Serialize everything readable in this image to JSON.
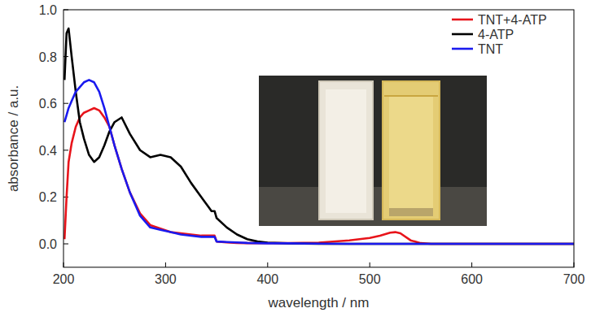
{
  "chart_data": {
    "type": "line",
    "x_label": "wavelength / nm",
    "y_label": "absorbance / a.u.",
    "x": [
      201,
      203,
      205,
      208,
      212,
      216,
      220,
      225,
      230,
      235,
      240,
      245,
      250,
      257,
      265,
      275,
      285,
      295,
      305,
      315,
      325,
      335,
      345,
      348,
      350,
      360,
      370,
      380,
      390,
      400,
      420,
      450,
      480,
      500,
      510,
      520,
      525,
      530,
      540,
      550,
      560,
      600,
      650,
      700
    ],
    "series": [
      {
        "name": "TNT+4-ATP",
        "color": "#e8141b",
        "values": [
          0.02,
          0.2,
          0.35,
          0.43,
          0.5,
          0.54,
          0.56,
          0.57,
          0.58,
          0.57,
          0.54,
          0.5,
          0.42,
          0.32,
          0.22,
          0.13,
          0.08,
          0.065,
          0.05,
          0.045,
          0.04,
          0.035,
          0.035,
          0.035,
          0.01,
          0.006,
          0.004,
          0.003,
          0.003,
          0.003,
          0.003,
          0.005,
          0.015,
          0.025,
          0.035,
          0.048,
          0.05,
          0.045,
          0.015,
          0.003,
          0,
          0,
          0,
          0
        ]
      },
      {
        "name": "4-ATP",
        "color": "#000000",
        "values": [
          0.7,
          0.9,
          0.92,
          0.8,
          0.65,
          0.52,
          0.45,
          0.38,
          0.35,
          0.37,
          0.42,
          0.48,
          0.52,
          0.54,
          0.47,
          0.4,
          0.37,
          0.38,
          0.37,
          0.33,
          0.26,
          0.2,
          0.14,
          0.14,
          0.11,
          0.07,
          0.04,
          0.02,
          0.01,
          0.005,
          0.002,
          0,
          0,
          0,
          0,
          0,
          0,
          0,
          0,
          0,
          0,
          0,
          0,
          0
        ]
      },
      {
        "name": "TNT",
        "color": "#1a1aef",
        "values": [
          0.52,
          0.55,
          0.58,
          0.61,
          0.65,
          0.67,
          0.69,
          0.7,
          0.69,
          0.65,
          0.58,
          0.5,
          0.42,
          0.32,
          0.22,
          0.12,
          0.07,
          0.06,
          0.05,
          0.04,
          0.035,
          0.03,
          0.03,
          0.03,
          0.01,
          0.008,
          0.006,
          0.004,
          0.003,
          0.002,
          0.002,
          0.001,
          0,
          0,
          0,
          0,
          0,
          0,
          0,
          0,
          0,
          0,
          0,
          0
        ]
      }
    ],
    "xlim": [
      200,
      700
    ],
    "xticks": [
      200,
      300,
      400,
      500,
      600,
      700
    ],
    "ylim": [
      -0.1,
      1.0
    ],
    "yticks": [
      {
        "value": 0,
        "label": "0.0"
      },
      0.2,
      0.4,
      0.6,
      0.8,
      {
        "value": 1,
        "label": "1.0"
      }
    ],
    "legend": "upper-right",
    "grid": false
  }
}
